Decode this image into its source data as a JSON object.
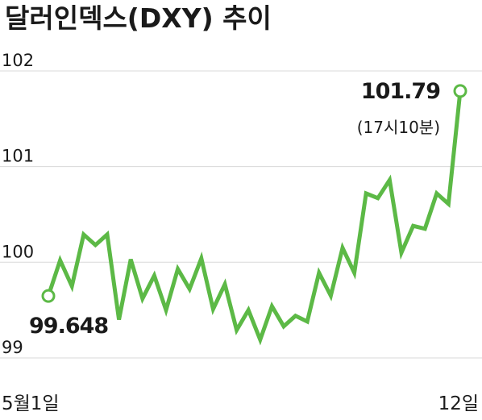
{
  "chart_data": {
    "type": "line",
    "title": "달러인덱스(DXY) 추이",
    "categories": [
      "5월1일",
      null,
      null,
      null,
      null,
      null,
      null,
      null,
      null,
      null,
      null,
      null,
      null,
      null,
      null,
      null,
      null,
      null,
      null,
      null,
      null,
      null,
      null,
      null,
      null,
      null,
      null,
      null,
      null,
      null,
      null,
      null,
      null,
      null,
      null,
      "12일"
    ],
    "values": [
      99.648,
      100.02,
      99.75,
      100.29,
      100.18,
      100.29,
      99.4,
      100.03,
      99.62,
      99.86,
      99.5,
      99.93,
      99.72,
      100.04,
      99.51,
      99.77,
      99.29,
      99.5,
      99.19,
      99.54,
      99.33,
      99.44,
      99.38,
      99.89,
      99.65,
      100.15,
      99.89,
      100.72,
      100.67,
      100.86,
      100.1,
      100.38,
      100.35,
      100.72,
      100.61,
      101.79
    ],
    "color": "#5cb946",
    "annotation": "(17시10분)",
    "ylim": [
      98.8,
      102.3
    ],
    "yticks": [
      99,
      100,
      101,
      102
    ],
    "grid": true
  }
}
